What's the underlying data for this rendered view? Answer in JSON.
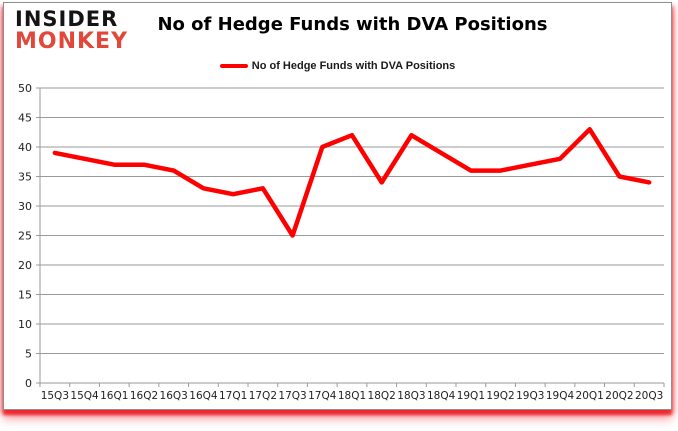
{
  "logo": {
    "line1": "INSIDER",
    "line2": "MONKEY",
    "accent_color": "#e2473a"
  },
  "header": {
    "title": "No of Hedge Funds with DVA Positions"
  },
  "legend": {
    "label": "No of Hedge Funds with DVA Positions",
    "color": "#ff0000"
  },
  "chart_data": {
    "type": "line",
    "title": "No of Hedge Funds with DVA Positions",
    "categories": [
      "15Q3",
      "15Q4",
      "16Q1",
      "16Q2",
      "16Q3",
      "16Q4",
      "17Q1",
      "17Q2",
      "17Q3",
      "17Q4",
      "18Q1",
      "18Q2",
      "18Q3",
      "18Q4",
      "19Q1",
      "19Q2",
      "19Q3",
      "19Q4",
      "20Q1",
      "20Q2",
      "20Q3"
    ],
    "series": [
      {
        "name": "No of Hedge Funds with DVA Positions",
        "color": "#ff0000",
        "values": [
          39,
          38,
          37,
          37,
          36,
          33,
          32,
          33,
          25,
          40,
          42,
          34,
          42,
          39,
          36,
          36,
          37,
          38,
          43,
          35,
          34
        ]
      }
    ],
    "xlabel": "",
    "ylabel": "",
    "ylim": [
      0,
      50
    ],
    "ytick_step": 5,
    "grid": true,
    "legend_position": "top",
    "line_width": 4.5,
    "grid_color": "#9a9a9a",
    "tick_label_color": "#222222"
  }
}
